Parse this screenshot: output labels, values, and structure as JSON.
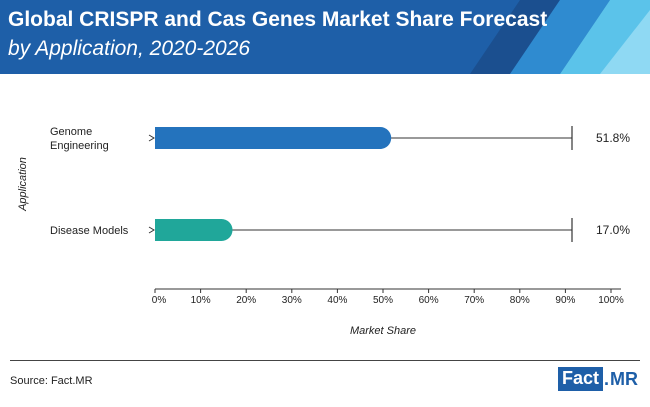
{
  "header": {
    "title": "Global CRISPR and Cas Genes Market Share Forecast",
    "subtitle": "by Application, 2020-2026"
  },
  "colors": {
    "header_bg": "#1e5fa8",
    "stripe_light": "#5bc3ea",
    "stripe_mid": "#2f8bd0"
  },
  "chart_data": {
    "type": "bar",
    "orientation": "horizontal",
    "categories": [
      "Genome Engineering",
      "Disease Models"
    ],
    "values": [
      51.8,
      17.0
    ],
    "value_labels": [
      "51.8%",
      "17.0%"
    ],
    "bar_colors": [
      "#2473bd",
      "#20a79a"
    ],
    "xlabel": "Market Share",
    "ylabel": "Application",
    "xlim": [
      0,
      100
    ],
    "x_ticks": [
      0,
      10,
      20,
      30,
      40,
      50,
      60,
      70,
      80,
      90,
      100
    ],
    "x_tick_labels": [
      "0%",
      "10%",
      "20%",
      "30%",
      "40%",
      "50%",
      "60%",
      "70%",
      "80%",
      "90%",
      "100%"
    ],
    "grid": false
  },
  "footer": {
    "source": "Source: Fact.MR",
    "logo_left": "Fact",
    "logo_dot": ".",
    "logo_right": "MR"
  }
}
